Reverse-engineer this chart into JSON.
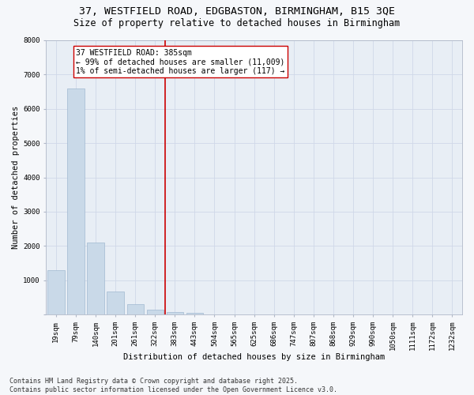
{
  "title_line1": "37, WESTFIELD ROAD, EDGBASTON, BIRMINGHAM, B15 3QE",
  "title_line2": "Size of property relative to detached houses in Birmingham",
  "xlabel": "Distribution of detached houses by size in Birmingham",
  "ylabel": "Number of detached properties",
  "categories": [
    "19sqm",
    "79sqm",
    "140sqm",
    "201sqm",
    "261sqm",
    "322sqm",
    "383sqm",
    "443sqm",
    "504sqm",
    "565sqm",
    "625sqm",
    "686sqm",
    "747sqm",
    "807sqm",
    "868sqm",
    "929sqm",
    "990sqm",
    "1050sqm",
    "1111sqm",
    "1172sqm",
    "1232sqm"
  ],
  "values": [
    1300,
    6600,
    2100,
    670,
    300,
    150,
    80,
    50,
    0,
    0,
    0,
    0,
    0,
    0,
    0,
    0,
    0,
    0,
    0,
    0,
    0
  ],
  "bar_color": "#c9d9e8",
  "bar_edge_color": "#a0b8d0",
  "grid_color": "#d0d8e8",
  "background_color": "#e8eef5",
  "fig_background_color": "#f5f7fa",
  "annotation_line1": "37 WESTFIELD ROAD: 385sqm",
  "annotation_line2": "← 99% of detached houses are smaller (11,009)",
  "annotation_line3": "1% of semi-detached houses are larger (117) →",
  "vline_color": "#cc0000",
  "annotation_box_color": "#ffffff",
  "annotation_box_edge_color": "#cc0000",
  "ylim": [
    0,
    8000
  ],
  "yticks": [
    0,
    1000,
    2000,
    3000,
    4000,
    5000,
    6000,
    7000,
    8000
  ],
  "footer_line1": "Contains HM Land Registry data © Crown copyright and database right 2025.",
  "footer_line2": "Contains public sector information licensed under the Open Government Licence v3.0.",
  "title_fontsize": 9.5,
  "subtitle_fontsize": 8.5,
  "axis_label_fontsize": 7.5,
  "tick_fontsize": 6.5,
  "annotation_fontsize": 7,
  "footer_fontsize": 6
}
